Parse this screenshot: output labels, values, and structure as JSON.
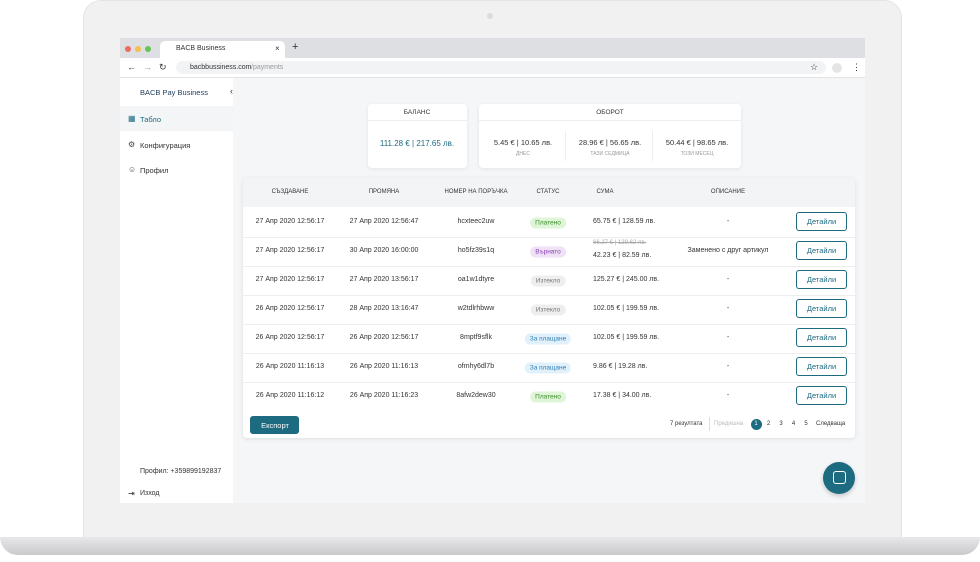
{
  "browser": {
    "tab_title": "BACB Business",
    "url_host": "bacbbussiness.com",
    "url_path": "/payments"
  },
  "sidebar": {
    "brand": "BACB Pay Business",
    "nav": [
      "Табло",
      "Конфигурация",
      "Профил"
    ],
    "profile": "Профил: +359899192837",
    "logout": "Изход"
  },
  "summary": {
    "balance_title": "БАЛАНС",
    "balance": "111.28 € | 217.65 лв.",
    "turnover_title": "ОБОРОТ",
    "turnover": [
      {
        "value": "5.45 € | 10.65 лв.",
        "label": "ДНЕС"
      },
      {
        "value": "28.96 € | 56.65 лв.",
        "label": "ТАЗИ СЕДМИЦА"
      },
      {
        "value": "50.44 € | 98.65 лв.",
        "label": "ТОЗИ МЕСЕЦ"
      }
    ]
  },
  "table": {
    "columns": [
      "СЪЗДАВАНЕ",
      "ПРОМЯНА",
      "НОМЕР НА ПОРЪЧКА",
      "СТАТУС",
      "СУМА",
      "ОПИСАНИЕ"
    ],
    "rows": [
      {
        "created": "27 Апр 2020 12:56:17",
        "modified": "27 Апр 2020 12:56:47",
        "order": "hcxteec2uw",
        "status": "Платено",
        "amount": "65.75 € | 128.59 лв.",
        "description": "-"
      },
      {
        "created": "27 Апр 2020 12:56:17",
        "modified": "30 Апр 2020 16:00:00",
        "order": "ho5fz39s1q",
        "status": "Върнато",
        "old_amount": "66.27 € | 129.62 лв.",
        "amount": "42.23 € | 82.59 лв.",
        "description": "Заменено с друг артикул"
      },
      {
        "created": "27 Апр 2020 12:56:17",
        "modified": "27 Апр 2020 13:56:17",
        "order": "oa1w1dtyre",
        "status": "Изтекло",
        "amount": "125.27 € | 245.00 лв.",
        "description": "-"
      },
      {
        "created": "26 Апр 2020 12:56:17",
        "modified": "28 Апр 2020 13:16:47",
        "order": "w2tdlrhbww",
        "status": "Изтекло",
        "amount": "102.05 € | 199.59 лв.",
        "description": "-"
      },
      {
        "created": "26 Апр 2020 12:56:17",
        "modified": "26 Апр 2020 12:56:17",
        "order": "8mptf9sflk",
        "status": "За плащане",
        "amount": "102.05 € | 199.59 лв.",
        "description": "-"
      },
      {
        "created": "26 Апр 2020 11:16:13",
        "modified": "26 Апр 2020 11:16:13",
        "order": "ofmhy6dl7b",
        "status": "За плащане",
        "amount": "9.86 € | 19.28 лв.",
        "description": "-"
      },
      {
        "created": "26 Апр 2020 11:16:12",
        "modified": "26 Апр 2020 11:16:23",
        "order": "8afw2dew30",
        "status": "Платено",
        "amount": "17.38 € | 34.00 лв.",
        "description": "-"
      }
    ],
    "action": "Детайли"
  },
  "footer": {
    "export": "Експорт",
    "results": "7 резултата",
    "prev": "Предишна",
    "pages": [
      1,
      2,
      3,
      4,
      5
    ],
    "next": "Следваща"
  }
}
